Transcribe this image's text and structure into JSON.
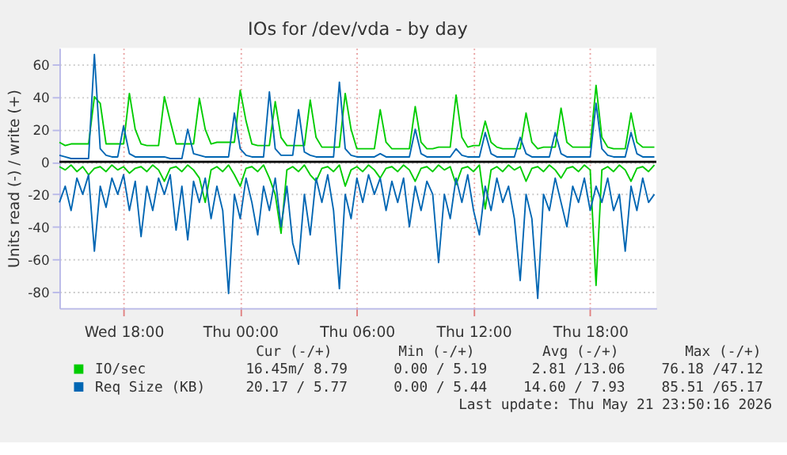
{
  "chart_data": {
    "type": "line",
    "title": "IOs for /dev/vda - by day",
    "ylabel": "Units read (-) / write (+)",
    "x": [
      "2026-05-20T14:42",
      "2026-05-20T15:00",
      "2026-05-20T15:18",
      "2026-05-20T15:36",
      "2026-05-20T15:54",
      "2026-05-20T16:12",
      "2026-05-20T16:30",
      "2026-05-20T16:48",
      "2026-05-20T17:06",
      "2026-05-20T17:24",
      "2026-05-20T17:42",
      "2026-05-20T18:00",
      "2026-05-20T18:18",
      "2026-05-20T18:36",
      "2026-05-20T18:54",
      "2026-05-20T19:12",
      "2026-05-20T19:30",
      "2026-05-20T19:48",
      "2026-05-20T20:06",
      "2026-05-20T20:24",
      "2026-05-20T20:42",
      "2026-05-20T21:00",
      "2026-05-20T21:18",
      "2026-05-20T21:36",
      "2026-05-20T21:54",
      "2026-05-20T22:12",
      "2026-05-20T22:30",
      "2026-05-20T22:48",
      "2026-05-20T23:06",
      "2026-05-20T23:24",
      "2026-05-20T23:42",
      "2026-05-21T00:00",
      "2026-05-21T00:18",
      "2026-05-21T00:36",
      "2026-05-21T00:54",
      "2026-05-21T01:12",
      "2026-05-21T01:30",
      "2026-05-21T01:48",
      "2026-05-21T02:06",
      "2026-05-21T02:24",
      "2026-05-21T02:42",
      "2026-05-21T03:00",
      "2026-05-21T03:18",
      "2026-05-21T03:36",
      "2026-05-21T03:54",
      "2026-05-21T04:12",
      "2026-05-21T04:30",
      "2026-05-21T04:48",
      "2026-05-21T05:06",
      "2026-05-21T05:24",
      "2026-05-21T05:42",
      "2026-05-21T06:00",
      "2026-05-21T06:18",
      "2026-05-21T06:36",
      "2026-05-21T06:54",
      "2026-05-21T07:12",
      "2026-05-21T07:30",
      "2026-05-21T07:48",
      "2026-05-21T08:06",
      "2026-05-21T08:24",
      "2026-05-21T08:42",
      "2026-05-21T09:00",
      "2026-05-21T09:18",
      "2026-05-21T09:36",
      "2026-05-21T09:54",
      "2026-05-21T10:12",
      "2026-05-21T10:30",
      "2026-05-21T10:48",
      "2026-05-21T11:06",
      "2026-05-21T11:24",
      "2026-05-21T11:42",
      "2026-05-21T12:00",
      "2026-05-21T12:18",
      "2026-05-21T12:36",
      "2026-05-21T12:54",
      "2026-05-21T13:12",
      "2026-05-21T13:30",
      "2026-05-21T13:48",
      "2026-05-21T14:06",
      "2026-05-21T14:24",
      "2026-05-21T14:42",
      "2026-05-21T15:00",
      "2026-05-21T15:18",
      "2026-05-21T15:36",
      "2026-05-21T15:54",
      "2026-05-21T16:12",
      "2026-05-21T16:30",
      "2026-05-21T16:48",
      "2026-05-21T17:06",
      "2026-05-21T17:24",
      "2026-05-21T17:42",
      "2026-05-21T18:00",
      "2026-05-21T18:18",
      "2026-05-21T18:36",
      "2026-05-21T18:54",
      "2026-05-21T19:12",
      "2026-05-21T19:30",
      "2026-05-21T19:48",
      "2026-05-21T20:06",
      "2026-05-21T20:24",
      "2026-05-21T20:42",
      "2026-05-21T21:00",
      "2026-05-21T21:18"
    ],
    "series": [
      {
        "name": "IO/sec",
        "color": "#00cc00",
        "values": [
          12,
          10,
          11,
          11,
          11,
          11,
          40,
          36,
          11,
          11,
          11,
          11,
          42,
          20,
          11,
          10,
          10,
          10,
          40,
          25,
          11,
          11,
          11,
          11,
          39,
          20,
          11,
          12,
          12,
          12,
          12,
          44,
          25,
          11,
          10,
          10,
          10,
          37,
          15,
          10,
          10,
          10,
          10,
          38,
          15,
          9,
          9,
          9,
          9,
          42,
          20,
          8,
          8,
          8,
          8,
          32,
          12,
          8,
          8,
          8,
          8,
          34,
          12,
          8,
          8,
          9,
          9,
          9,
          41,
          15,
          9,
          10,
          10,
          25,
          12,
          9,
          8,
          8,
          8,
          8,
          30,
          12,
          8,
          9,
          9,
          9,
          33,
          12,
          9,
          9,
          9,
          9,
          47,
          15,
          9,
          8,
          8,
          8,
          30,
          12,
          9,
          9,
          9
        ]
      },
      {
        "color": "#00cc00",
        "values": [
          -3,
          -5,
          -2,
          -6,
          -3,
          -8,
          -4,
          -3,
          -6,
          -2,
          -5,
          -3,
          -7,
          -4,
          -3,
          -6,
          -2,
          -5,
          -12,
          -4,
          -3,
          -6,
          -2,
          -5,
          -10,
          -25,
          -5,
          -3,
          -6,
          -2,
          -8,
          -15,
          -4,
          -3,
          -6,
          -2,
          -10,
          -20,
          -44,
          -5,
          -3,
          -6,
          -2,
          -8,
          -12,
          -4,
          -3,
          -6,
          -2,
          -15,
          -5,
          -3,
          -6,
          -2,
          -5,
          -10,
          -4,
          -3,
          -6,
          -2,
          -5,
          -12,
          -4,
          -3,
          -6,
          -2,
          -5,
          -3,
          -14,
          -4,
          -3,
          -6,
          -2,
          -29,
          -5,
          -3,
          -6,
          -2,
          -5,
          -3,
          -12,
          -4,
          -3,
          -6,
          -2,
          -5,
          -10,
          -4,
          -3,
          -6,
          -2,
          -5,
          -76,
          -5,
          -3,
          -6,
          -2,
          -5,
          -12,
          -4,
          -3,
          -6,
          -2
        ]
      },
      {
        "name": "Req Size (KB)",
        "color": "#0066b3",
        "values": [
          4,
          3,
          2,
          2,
          2,
          2,
          66,
          8,
          4,
          3,
          3,
          22,
          5,
          3,
          3,
          3,
          3,
          3,
          3,
          2,
          2,
          2,
          20,
          5,
          4,
          3,
          3,
          3,
          3,
          3,
          30,
          8,
          4,
          3,
          3,
          3,
          43,
          8,
          4,
          4,
          4,
          32,
          6,
          4,
          3,
          3,
          3,
          3,
          49,
          8,
          4,
          3,
          3,
          3,
          3,
          5,
          3,
          3,
          3,
          3,
          3,
          20,
          5,
          3,
          3,
          3,
          3,
          3,
          8,
          4,
          3,
          3,
          3,
          18,
          5,
          3,
          3,
          3,
          3,
          15,
          5,
          3,
          3,
          3,
          3,
          18,
          5,
          3,
          3,
          3,
          3,
          3,
          36,
          8,
          4,
          3,
          3,
          3,
          18,
          5,
          3,
          3,
          3
        ]
      },
      {
        "color": "#0066b3",
        "values": [
          -25,
          -15,
          -30,
          -10,
          -20,
          -8,
          -55,
          -15,
          -28,
          -10,
          -20,
          -8,
          -30,
          -12,
          -46,
          -15,
          -30,
          -10,
          -20,
          -8,
          -42,
          -15,
          -48,
          -12,
          -25,
          -10,
          -35,
          -15,
          -30,
          -81,
          -20,
          -35,
          -10,
          -25,
          -45,
          -15,
          -30,
          -10,
          -40,
          -15,
          -50,
          -63,
          -20,
          -45,
          -10,
          -25,
          -8,
          -30,
          -78,
          -20,
          -35,
          -10,
          -25,
          -8,
          -20,
          -10,
          -30,
          -12,
          -25,
          -10,
          -40,
          -15,
          -30,
          -12,
          -20,
          -62,
          -20,
          -35,
          -10,
          -25,
          -8,
          -30,
          -45,
          -15,
          -30,
          -10,
          -25,
          -15,
          -35,
          -73,
          -20,
          -35,
          -84,
          -20,
          -30,
          -10,
          -25,
          -40,
          -15,
          -25,
          -10,
          -30,
          -15,
          -25,
          -10,
          -30,
          -20,
          -55,
          -15,
          -30,
          -10,
          -25,
          -20
        ]
      }
    ],
    "xlim": [
      "2026-05-20T14:42",
      "2026-05-21T21:24"
    ],
    "xticks": [
      {
        "value": "2026-05-20T18:00",
        "label": "Wed 18:00"
      },
      {
        "value": "2026-05-21T00:00",
        "label": "Thu 00:00"
      },
      {
        "value": "2026-05-21T06:00",
        "label": "Thu 06:00"
      },
      {
        "value": "2026-05-21T12:00",
        "label": "Thu 12:00"
      },
      {
        "value": "2026-05-21T18:00",
        "label": "Thu 18:00"
      }
    ],
    "ylim": [
      -90,
      70
    ],
    "yticks": [
      -80,
      -60,
      -40,
      -20,
      0,
      20,
      40,
      60
    ],
    "ref_lines": [
      {
        "axis": "y",
        "value": 0,
        "color": "#000000"
      }
    ],
    "grid": true,
    "legend": "bottom",
    "line_style": "solid",
    "marker": "none",
    "annotations": [
      "Cur (-/+)",
      "Min (-/+)",
      "Avg (-/+)",
      "Max (-/+)",
      "16.45m/ 8.79",
      "0.00 / 5.19",
      "2.81 /13.06",
      "76.18 /47.12",
      "20.17 / 5.77",
      "0.00 / 5.44",
      "14.60 / 7.93",
      "85.51 /65.17",
      "Last update: Thu May 21 23:50:16 2026"
    ]
  }
}
